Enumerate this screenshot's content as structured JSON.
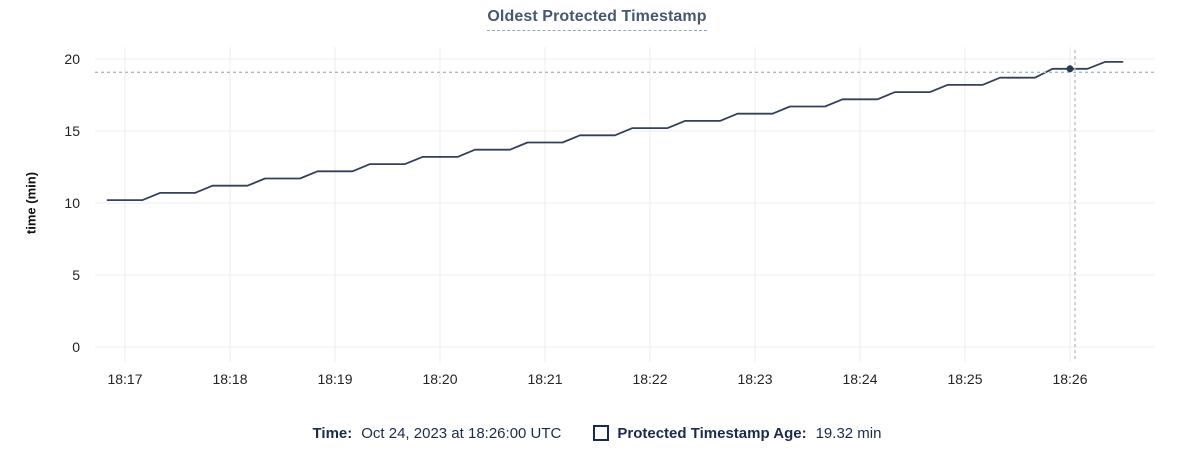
{
  "chart_data": {
    "type": "line",
    "title": "Oldest Protected Timestamp",
    "xlabel": "",
    "ylabel": "time (min)",
    "ylim": [
      0,
      20
    ],
    "y_ticks": [
      0,
      5,
      10,
      15,
      20
    ],
    "x_tick_labels": [
      "18:17",
      "18:18",
      "18:19",
      "18:20",
      "18:21",
      "18:22",
      "18:23",
      "18:24",
      "18:25",
      "18:26"
    ],
    "grid": true,
    "legend_position": "bottom",
    "series": [
      {
        "name": "Protected Timestamp Age",
        "unit": "min",
        "points": [
          [
            "18:16:50",
            10.2
          ],
          [
            "18:17:10",
            10.2
          ],
          [
            "18:17:20",
            10.7
          ],
          [
            "18:17:40",
            10.7
          ],
          [
            "18:17:50",
            11.2
          ],
          [
            "18:18:10",
            11.2
          ],
          [
            "18:18:20",
            11.7
          ],
          [
            "18:18:40",
            11.7
          ],
          [
            "18:18:50",
            12.2
          ],
          [
            "18:19:10",
            12.2
          ],
          [
            "18:19:20",
            12.7
          ],
          [
            "18:19:40",
            12.7
          ],
          [
            "18:19:50",
            13.2
          ],
          [
            "18:20:10",
            13.2
          ],
          [
            "18:20:20",
            13.7
          ],
          [
            "18:20:40",
            13.7
          ],
          [
            "18:20:50",
            14.2
          ],
          [
            "18:21:10",
            14.2
          ],
          [
            "18:21:20",
            14.7
          ],
          [
            "18:21:40",
            14.7
          ],
          [
            "18:21:50",
            15.2
          ],
          [
            "18:22:10",
            15.2
          ],
          [
            "18:22:20",
            15.7
          ],
          [
            "18:22:40",
            15.7
          ],
          [
            "18:22:50",
            16.2
          ],
          [
            "18:23:10",
            16.2
          ],
          [
            "18:23:20",
            16.7
          ],
          [
            "18:23:40",
            16.7
          ],
          [
            "18:23:50",
            17.2
          ],
          [
            "18:24:10",
            17.2
          ],
          [
            "18:24:20",
            17.7
          ],
          [
            "18:24:40",
            17.7
          ],
          [
            "18:24:50",
            18.2
          ],
          [
            "18:25:10",
            18.2
          ],
          [
            "18:25:20",
            18.7
          ],
          [
            "18:25:40",
            18.7
          ],
          [
            "18:25:50",
            19.32
          ],
          [
            "18:26:10",
            19.32
          ],
          [
            "18:26:20",
            19.8
          ],
          [
            "18:26:30",
            19.8
          ]
        ]
      }
    ],
    "hover_point": {
      "time": "18:26:00",
      "value": 19.32
    }
  },
  "legend": {
    "time_label": "Time:",
    "time_value": "Oct 24, 2023 at 18:26:00 UTC",
    "series_label": "Protected Timestamp Age:",
    "series_value": "19.32 min"
  },
  "colors": {
    "series_line": "#33415c",
    "hover_dot": "#2c3a58",
    "title_text": "#475872",
    "title_underline": "#93a5b8",
    "legend_text": "#1c2b4d",
    "gridline": "#ececec",
    "crosshair": "#a9b9c5",
    "axis_tick_text": "#242424"
  }
}
